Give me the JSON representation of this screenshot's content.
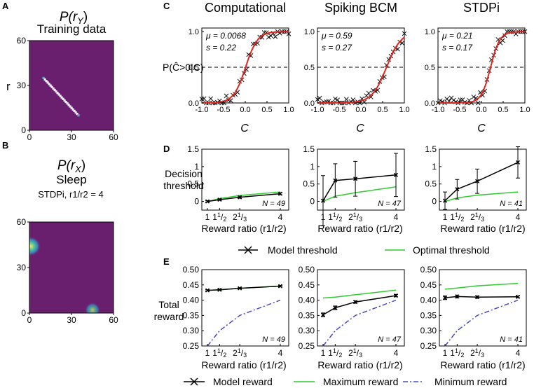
{
  "panel_letters": {
    "a": "A",
    "b": "B",
    "c": "C",
    "d": "D",
    "e": "E"
  },
  "panel_a": {
    "title_main": "P(r",
    "title_sub": "Y",
    "title_close": ")",
    "subtitle": "Training data",
    "ylabel": "r"
  },
  "panel_b": {
    "title_main": "P(r",
    "title_sub": "X",
    "title_close": ")",
    "subtitle": "Sleep",
    "caption": "STDPi, r1/r2 = 4"
  },
  "row_c": {
    "ylabel": "P(Ĉ>0|C)",
    "xlabel": "C"
  },
  "row_d": {
    "ylabel_line1": "Decision",
    "ylabel_line2": "threshold",
    "xlabel": "Reward ratio (r1/r2)"
  },
  "row_e": {
    "ylabel_line1": "Total",
    "ylabel_line2": "reward",
    "xlabel": "Reward ratio (r1/r2)"
  },
  "legend_d": {
    "model": "Model threshold",
    "optimal": "Optimal threshold"
  },
  "legend_e": {
    "model": "Model reward",
    "max": "Maximum reward",
    "min": "Minimum reward"
  },
  "colors": {
    "heatmap_bg": "#6a1f6e",
    "fit_red": "#e0241e",
    "optimal_green": "#2ecc2e",
    "min_blue": "#4b4bc8",
    "diag_white": "#f2f2ff"
  },
  "chart_data": [
    {
      "id": "A",
      "type": "heatmap",
      "xlim": [
        0,
        60
      ],
      "ylim": [
        0,
        60
      ],
      "xticks": [
        "0",
        "30",
        "60"
      ],
      "yticks": [
        "0",
        "30",
        "60"
      ],
      "description_points": [
        [
          10,
          35
        ],
        [
          35,
          10
        ]
      ]
    },
    {
      "id": "B",
      "type": "heatmap",
      "xlim": [
        0,
        60
      ],
      "ylim": [
        0,
        60
      ],
      "xticks": [
        "0",
        "30",
        "60"
      ],
      "yticks": [
        "0",
        "30",
        "60"
      ],
      "blobs": [
        [
          1,
          44
        ],
        [
          45,
          2
        ]
      ]
    },
    {
      "id": "C1",
      "type": "scatter",
      "title": "Computational",
      "mu": "μ = 0.0068",
      "s": "s = 0.22",
      "mu_val": 0.0068,
      "s_val": 0.22,
      "xlim": [
        -1,
        1
      ],
      "ylim": [
        0,
        1.05
      ],
      "xticks": [
        "-1.0",
        "-0.5",
        "0.0",
        "0.5",
        "1.0"
      ],
      "yticks": [
        "0.0",
        "0.5",
        "1.0"
      ],
      "dashed_y": 0.5
    },
    {
      "id": "C2",
      "type": "scatter",
      "title": "Spiking BCM",
      "mu": "μ = 0.59",
      "s": "s = 0.27",
      "mu_val": 0.59,
      "s_val": 0.27,
      "xlim": [
        -1,
        1
      ],
      "ylim": [
        0,
        1.05
      ],
      "xticks": [
        "-1.0",
        "-0.5",
        "0.0",
        "0.5",
        "1.0"
      ],
      "yticks": [
        "0.0",
        "0.5",
        "1.0"
      ],
      "dashed_y": 0.5
    },
    {
      "id": "C3",
      "type": "scatter",
      "title": "STDPi",
      "mu": "μ = 0.21",
      "s": "s = 0.17",
      "mu_val": 0.21,
      "s_val": 0.17,
      "xlim": [
        -1,
        1
      ],
      "ylim": [
        0,
        1.05
      ],
      "xticks": [
        "-1.0",
        "-0.5",
        "0.0",
        "0.5",
        "1.0"
      ],
      "yticks": [
        "0.0",
        "0.5",
        "1.0"
      ],
      "dashed_y": 0.5
    },
    {
      "id": "D1",
      "type": "line",
      "ylim": [
        -0.25,
        1.5
      ],
      "yticks": [
        "0",
        "0.5",
        "1",
        "1.5"
      ],
      "n_label": "N = 49",
      "x": [
        1,
        1.5,
        2.33,
        4
      ],
      "model": [
        0.0,
        0.05,
        0.12,
        0.22
      ],
      "err": [
        0.02,
        0.02,
        0.03,
        0.03
      ],
      "optimal": [
        0.0,
        0.08,
        0.17,
        0.27
      ]
    },
    {
      "id": "D2",
      "type": "line",
      "ylim": [
        -0.25,
        1.5
      ],
      "yticks": [
        "0",
        "0.5",
        "1",
        "1.5"
      ],
      "n_label": "N = 47",
      "x": [
        1,
        1.5,
        2.33,
        4
      ],
      "model": [
        0.02,
        0.6,
        0.65,
        0.76
      ],
      "err": [
        0.72,
        0.48,
        0.5,
        0.62
      ],
      "optimal": [
        0.0,
        0.15,
        0.25,
        0.42
      ]
    },
    {
      "id": "D3",
      "type": "line",
      "ylim": [
        -0.25,
        1.5
      ],
      "yticks": [
        "0",
        "0.5",
        "1",
        "1.5"
      ],
      "n_label": "N = 41",
      "x": [
        1,
        1.5,
        2.33,
        4
      ],
      "model": [
        0.02,
        0.35,
        0.58,
        1.12
      ],
      "err": [
        0.25,
        0.28,
        0.35,
        0.45
      ],
      "optimal": [
        0.0,
        0.1,
        0.18,
        0.27
      ]
    },
    {
      "id": "E1",
      "type": "line",
      "ylim": [
        0.25,
        0.5
      ],
      "yticks": [
        "0.25",
        "0.30",
        "0.35",
        "0.40",
        "0.45",
        "0.50"
      ],
      "n_label": "N = 49",
      "x": [
        1,
        1.5,
        2.33,
        4
      ],
      "model": [
        0.432,
        0.434,
        0.439,
        0.446
      ],
      "err": [
        0.002,
        0.002,
        0.002,
        0.002
      ],
      "max": [
        0.432,
        0.434,
        0.439,
        0.446
      ],
      "min": [
        0.25,
        0.3,
        0.35,
        0.4
      ]
    },
    {
      "id": "E2",
      "type": "line",
      "ylim": [
        0.25,
        0.5
      ],
      "yticks": [
        "0.25",
        "0.30",
        "0.35",
        "0.40",
        "0.45",
        "0.50"
      ],
      "n_label": "N = 47",
      "x": [
        1,
        1.5,
        2.33,
        4
      ],
      "model": [
        0.352,
        0.375,
        0.394,
        0.415
      ],
      "err": [
        0.006,
        0.006,
        0.004,
        0.004
      ],
      "max": [
        0.407,
        0.41,
        0.418,
        0.433
      ],
      "min": [
        0.25,
        0.3,
        0.35,
        0.4
      ]
    },
    {
      "id": "E3",
      "type": "line",
      "ylim": [
        0.25,
        0.5
      ],
      "yticks": [
        "0.25",
        "0.30",
        "0.35",
        "0.40",
        "0.45",
        "0.50"
      ],
      "n_label": "N = 41",
      "x": [
        1,
        1.5,
        2.33,
        4
      ],
      "model": [
        0.408,
        0.412,
        0.41,
        0.411
      ],
      "err": [
        0.006,
        0.005,
        0.004,
        0.003
      ],
      "max": [
        0.436,
        0.44,
        0.447,
        0.455
      ],
      "min": [
        0.25,
        0.3,
        0.35,
        0.4
      ]
    }
  ]
}
